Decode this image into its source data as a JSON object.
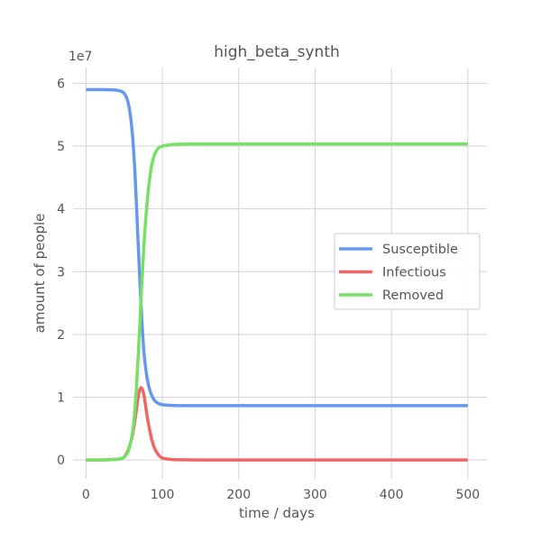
{
  "chart_data": {
    "type": "line",
    "title": "high_beta_synth",
    "xlabel": "time / days",
    "ylabel": "amount of people",
    "y_offset_label": "1e7",
    "xlim": [
      -17,
      525
    ],
    "ylim": [
      -0.3,
      6.25
    ],
    "x_ticks": [
      0,
      100,
      200,
      300,
      400,
      500
    ],
    "y_ticks": [
      0,
      1,
      2,
      3,
      4,
      5,
      6
    ],
    "grid": true,
    "legend_position": "center-right",
    "series": [
      {
        "name": "Susceptible",
        "color": "#6699ee",
        "x": [
          0,
          20,
          40,
          48,
          52,
          55,
          58,
          61,
          64,
          67,
          70,
          73,
          76,
          79,
          82,
          85,
          88,
          91,
          95,
          100,
          110,
          120,
          150,
          200,
          300,
          400,
          500
        ],
        "y": [
          5.9,
          5.9,
          5.89,
          5.86,
          5.8,
          5.7,
          5.5,
          5.15,
          4.6,
          3.8,
          3.0,
          2.25,
          1.7,
          1.38,
          1.18,
          1.06,
          0.98,
          0.93,
          0.9,
          0.88,
          0.87,
          0.865,
          0.865,
          0.865,
          0.865,
          0.865,
          0.865
        ]
      },
      {
        "name": "Infectious",
        "color": "#ee6666",
        "x": [
          0,
          20,
          40,
          48,
          52,
          56,
          60,
          63,
          66,
          68,
          70,
          72,
          74,
          76,
          78,
          80,
          83,
          86,
          90,
          95,
          100,
          110,
          120,
          150,
          200,
          300,
          400,
          500
        ],
        "y": [
          0,
          0,
          0.01,
          0.03,
          0.08,
          0.18,
          0.35,
          0.55,
          0.8,
          0.98,
          1.1,
          1.15,
          1.12,
          1.02,
          0.87,
          0.7,
          0.5,
          0.33,
          0.18,
          0.08,
          0.03,
          0.01,
          0.003,
          0,
          0,
          0,
          0,
          0
        ]
      },
      {
        "name": "Removed",
        "color": "#77e066",
        "x": [
          0,
          20,
          40,
          48,
          52,
          55,
          58,
          61,
          64,
          67,
          70,
          73,
          76,
          79,
          82,
          85,
          88,
          91,
          95,
          100,
          110,
          120,
          150,
          200,
          300,
          400,
          500
        ],
        "y": [
          0,
          0,
          0.01,
          0.03,
          0.07,
          0.13,
          0.25,
          0.45,
          0.8,
          1.35,
          2.05,
          2.8,
          3.45,
          3.95,
          4.35,
          4.62,
          4.8,
          4.9,
          4.97,
          5.0,
          5.02,
          5.03,
          5.035,
          5.035,
          5.035,
          5.035,
          5.035
        ]
      }
    ]
  }
}
